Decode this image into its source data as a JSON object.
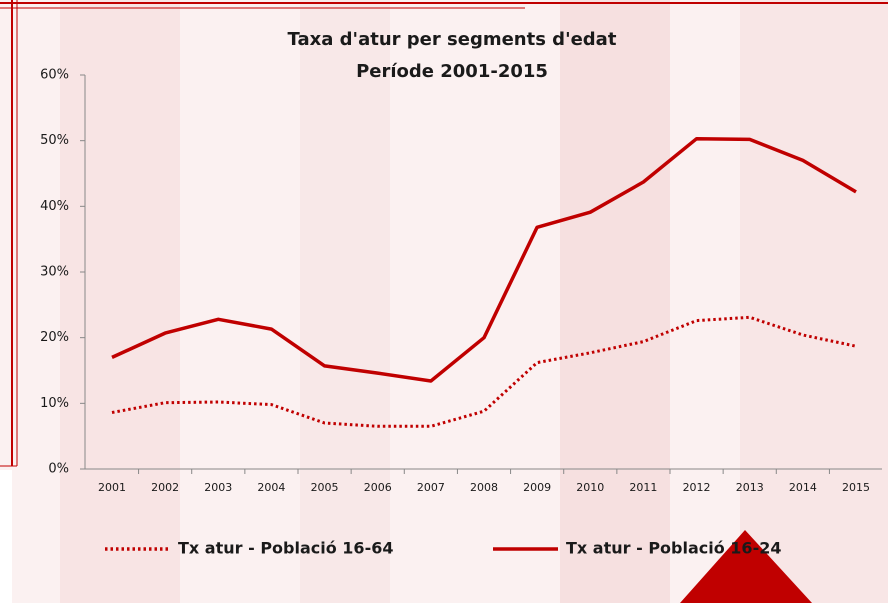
{
  "chart_data": {
    "type": "line",
    "title": "Taxa d'atur per segments d'edat",
    "subtitle": "Període 2001-2015",
    "categories": [
      "2001",
      "2002",
      "2003",
      "2004",
      "2005",
      "2006",
      "2007",
      "2008",
      "2009",
      "2010",
      "2011",
      "2012",
      "2013",
      "2014",
      "2015"
    ],
    "series": [
      {
        "name": "Tx atur - Població 16-64",
        "color": "#c00000",
        "style": "dotted",
        "values": [
          8.6,
          10.1,
          10.2,
          9.8,
          7.0,
          6.5,
          6.5,
          8.8,
          16.2,
          17.7,
          19.4,
          22.6,
          23.1,
          20.4,
          18.7
        ]
      },
      {
        "name": "Tx atur - Població 16-24",
        "color": "#c00000",
        "style": "solid",
        "values": [
          17.0,
          20.7,
          22.8,
          21.3,
          15.7,
          14.6,
          13.4,
          20.0,
          36.8,
          39.1,
          43.7,
          50.3,
          50.2,
          47.0,
          42.2
        ]
      }
    ],
    "ylim": [
      0,
      60
    ],
    "yticks": [
      {
        "value": 0,
        "label": "0%"
      },
      {
        "value": 10,
        "label": "10%"
      },
      {
        "value": 20,
        "label": "20%"
      },
      {
        "value": 30,
        "label": "30%"
      },
      {
        "value": 40,
        "label": "40%"
      },
      {
        "value": 50,
        "label": "50%"
      },
      {
        "value": 60,
        "label": "60%"
      }
    ],
    "grid": false,
    "legend": "bottom"
  }
}
